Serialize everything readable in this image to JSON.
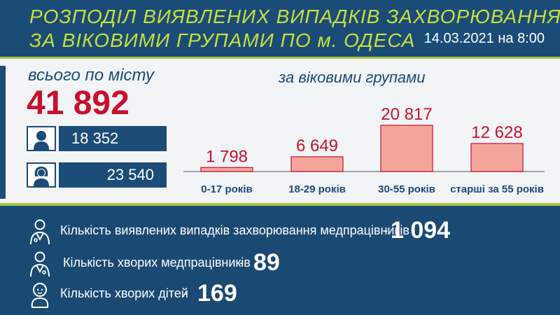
{
  "header": {
    "title_line1": "РОЗПОДІЛ ВИЯВЛЕНИХ ВИПАДКІВ ЗАХВОРЮВАННЯ",
    "title_line2": "ЗА ВІКОВИМИ ГРУПАМИ ПО м. ОДЕСА",
    "date": "14.03.2021 на 8:00"
  },
  "summary": {
    "city_label": "всього по місту",
    "city_total": "41 892",
    "male_icon": "man-icon",
    "male_value": "18 352",
    "female_icon": "woman-icon",
    "female_value": "23 540"
  },
  "chart_data": {
    "type": "bar",
    "title": "за віковими групами",
    "categories": [
      "0-17 років",
      "18-29 років",
      "30-55 років",
      "старші за 55 років"
    ],
    "values": [
      1798,
      6649,
      20817,
      12628
    ],
    "value_labels": [
      "1 798",
      "6 649",
      "20 817",
      "12 628"
    ],
    "xlabel": "",
    "ylabel": "",
    "grid": false,
    "legend": "none",
    "colors": {
      "bar_fill": "#f4a59a",
      "bar_stroke": "#c8102e",
      "label": "#c8102e"
    }
  },
  "stats": [
    {
      "icon": "doctor-icon",
      "label": "Кількість виявлених випадків захворювання медпрацівників",
      "dash": "-",
      "value": "1 094"
    },
    {
      "icon": "doctor-icon",
      "label": "Кількість хворих медпрацівників",
      "dash": "-",
      "value": "89"
    },
    {
      "icon": "baby-icon",
      "label": "Кількість хворих дітей",
      "dash": "-",
      "value": "169"
    }
  ],
  "colors": {
    "accent": "#c9de3c",
    "brand": "#1b4c77",
    "highlight": "#c8102e"
  }
}
